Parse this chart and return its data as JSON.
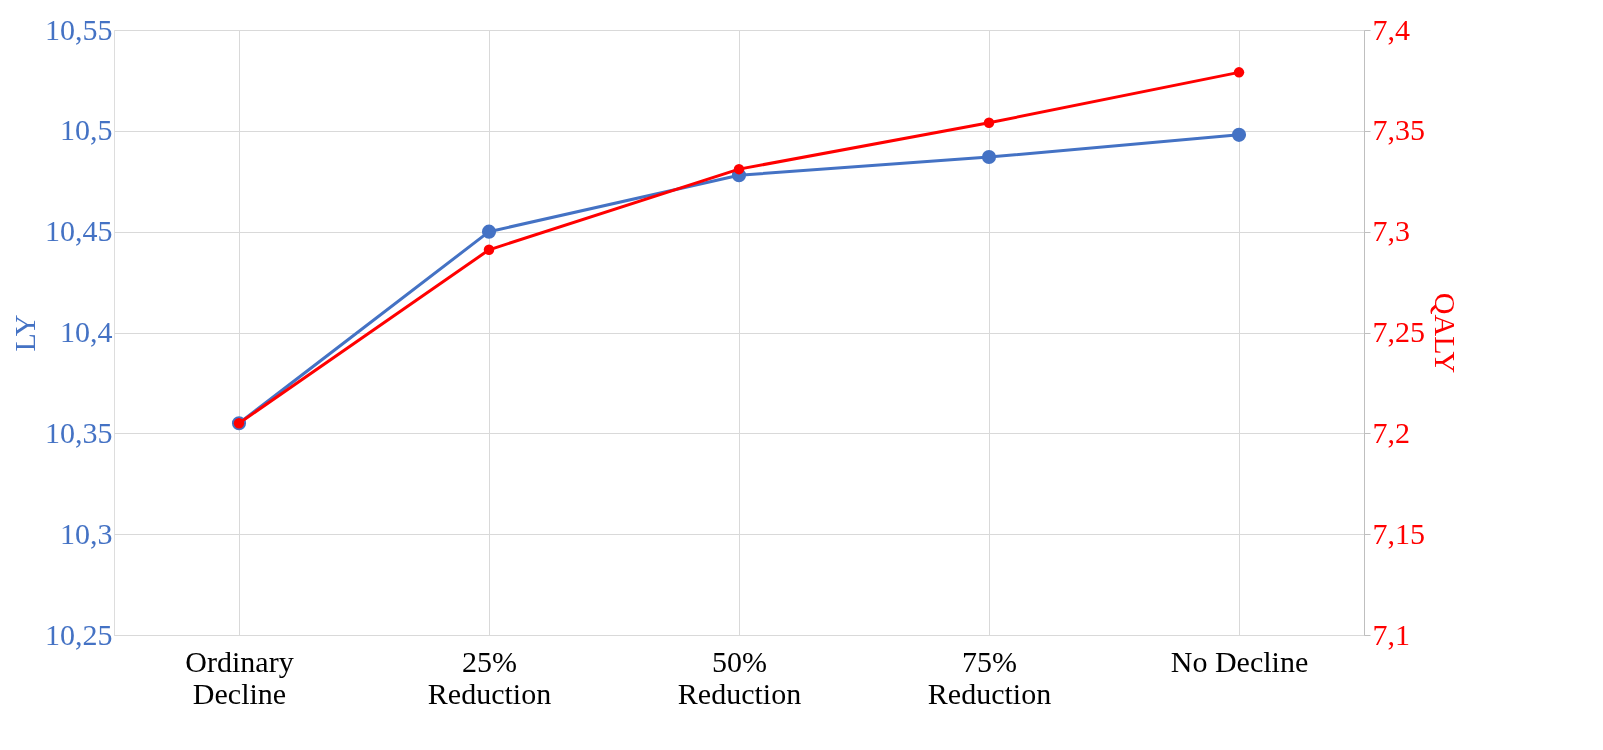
{
  "chart_data": {
    "type": "line",
    "ylabel": "LY",
    "y2label": "QALY",
    "categories": [
      "Ordinary Decline",
      "25% Reduction",
      "50% Reduction",
      "75% Reduction",
      "No Decline"
    ],
    "series": [
      {
        "color": "#4472c4",
        "values": [
          10.355,
          10.45,
          10.478,
          10.487,
          10.498
        ]
      },
      {
        "color": "#ff0000",
        "axis": "y2",
        "values": [
          7.205,
          7.291,
          7.331,
          7.354,
          7.379
        ]
      }
    ],
    "ylim": [
      10.25,
      10.55
    ],
    "yticks": [
      {
        "value": 10.25,
        "label": "10,25"
      },
      {
        "value": 10.3,
        "label": "10,3"
      },
      {
        "value": 10.35,
        "label": "10,35"
      },
      {
        "value": 10.4,
        "label": "10,4"
      },
      {
        "value": 10.45,
        "label": "10,45"
      },
      {
        "value": 10.5,
        "label": "10,5"
      },
      {
        "value": 10.55,
        "label": "10,55"
      }
    ],
    "y2lim": [
      7.1,
      7.4
    ],
    "y2ticks": [
      {
        "value": 7.1,
        "label": "7,1"
      },
      {
        "value": 7.15,
        "label": "7,15"
      },
      {
        "value": 7.2,
        "label": "7,2"
      },
      {
        "value": 7.25,
        "label": "7,25"
      },
      {
        "value": 7.3,
        "label": "7,3"
      },
      {
        "value": 7.35,
        "label": "7,35"
      },
      {
        "value": 7.4,
        "label": "7,4"
      }
    ],
    "grid": true,
    "marker": "circle",
    "line_style": "solid"
  }
}
